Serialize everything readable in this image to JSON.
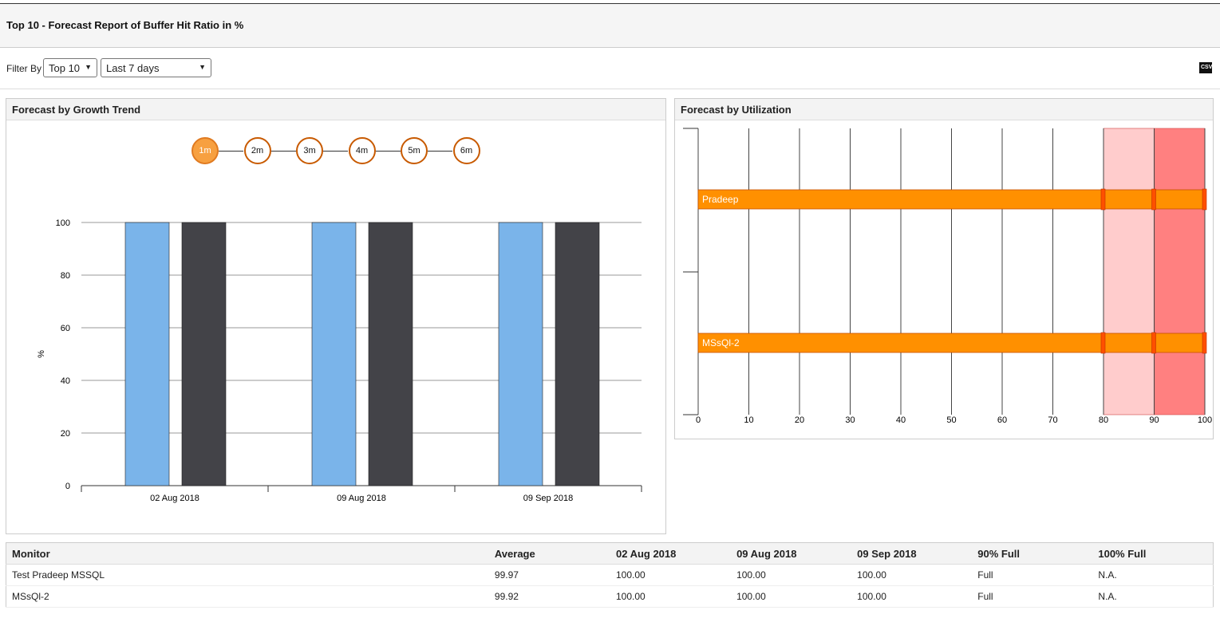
{
  "title": "Top 10 - Forecast Report of Buffer Hit Ratio in %",
  "filter": {
    "label": "Filter By",
    "top": "Top 10",
    "range": "Last 7 days",
    "export_icon": "csv-icon",
    "export_text": "CSV"
  },
  "growth": {
    "title": "Forecast by Growth Trend",
    "steps": [
      "1m",
      "2m",
      "3m",
      "4m",
      "5m",
      "6m"
    ],
    "active_step": "1m"
  },
  "utilization": {
    "title": "Forecast by Utilization"
  },
  "chart_data": [
    {
      "type": "bar",
      "title": "Forecast by Growth Trend",
      "ylabel": "%",
      "ylim": [
        0,
        100
      ],
      "yticks": [
        0,
        20,
        40,
        60,
        80,
        100
      ],
      "categories": [
        "02 Aug 2018",
        "09 Aug 2018",
        "09 Sep 2018"
      ],
      "series": [
        {
          "name": "Test Pradeep MSSQL",
          "color": "#7ab4ea",
          "values": [
            100,
            100,
            100
          ]
        },
        {
          "name": "MSsQl-2",
          "color": "#434348",
          "values": [
            100,
            100,
            100
          ]
        }
      ]
    },
    {
      "type": "bar",
      "orientation": "horizontal",
      "title": "Forecast by Utilization",
      "xlim": [
        0,
        100
      ],
      "xticks": [
        0,
        10,
        20,
        30,
        40,
        50,
        60,
        70,
        80,
        90,
        100
      ],
      "bands": [
        {
          "from": 80,
          "to": 90,
          "color": "#ffcccc"
        },
        {
          "from": 90,
          "to": 100,
          "color": "#ff8080"
        }
      ],
      "markers": [
        80,
        90,
        100
      ],
      "categories": [
        "Test Pradeep MSSQL",
        "MSsQl-2"
      ],
      "labels": [
        "Pradeep",
        "MSsQl-2"
      ],
      "values": [
        100,
        100
      ]
    }
  ],
  "table": {
    "headers": [
      "Monitor",
      "Average",
      "02 Aug 2018",
      "09 Aug 2018",
      "09 Sep 2018",
      "90% Full",
      "100% Full"
    ],
    "rows": [
      [
        "Test Pradeep MSSQL",
        "99.97",
        "100.00",
        "100.00",
        "100.00",
        "Full",
        "N.A."
      ],
      [
        "MSsQl-2",
        "99.92",
        "100.00",
        "100.00",
        "100.00",
        "Full",
        "N.A."
      ]
    ]
  }
}
